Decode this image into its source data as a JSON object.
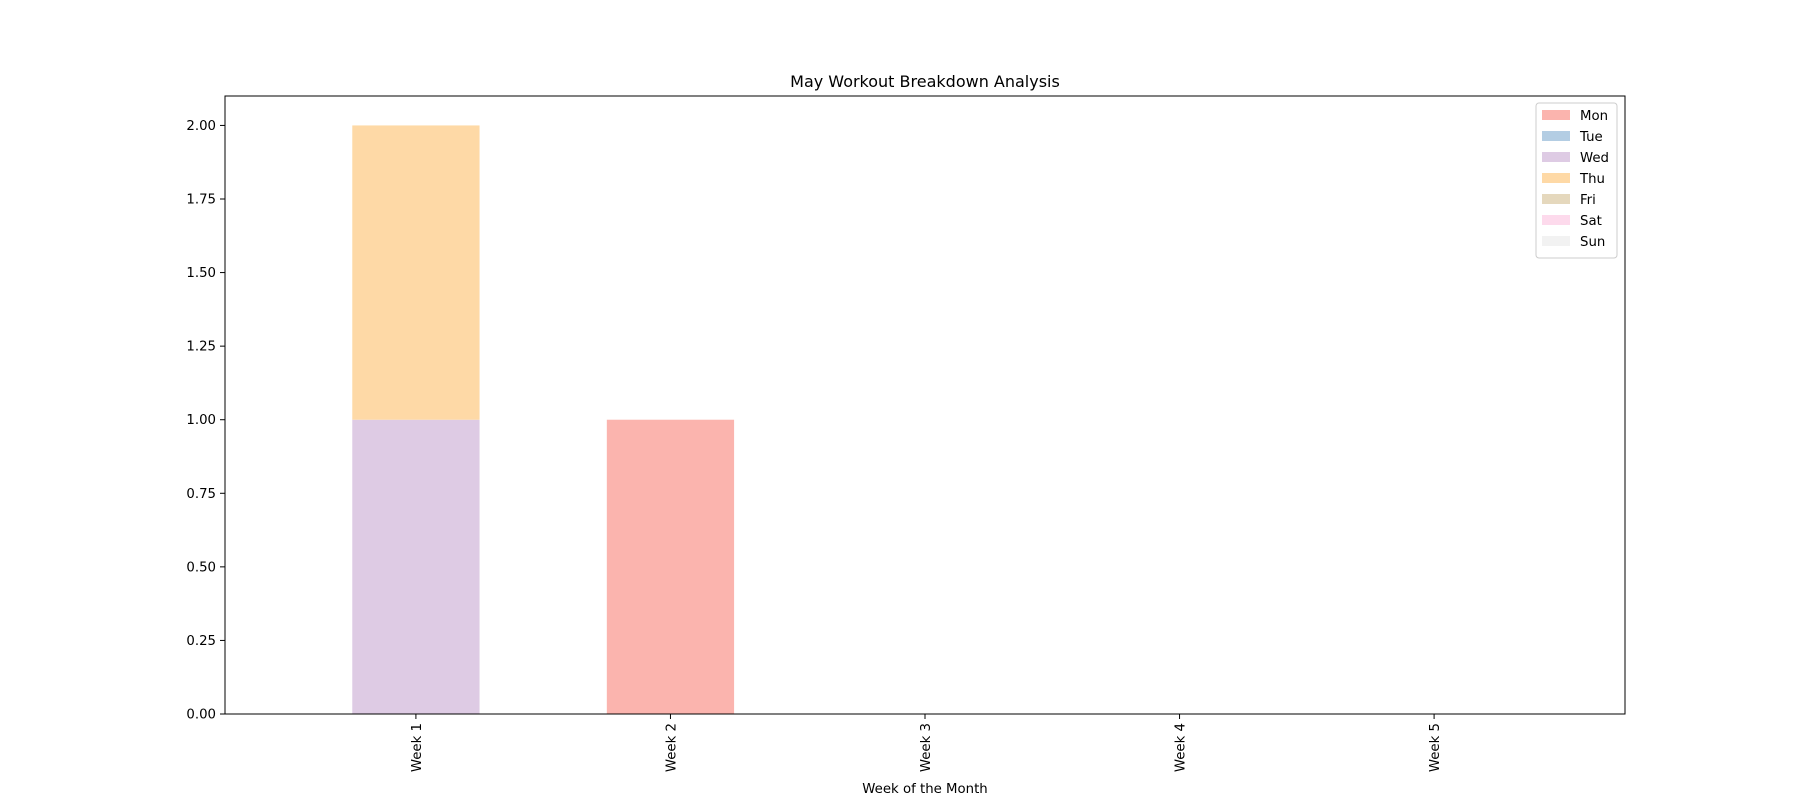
{
  "chart_data": {
    "type": "bar",
    "stacked": true,
    "title": "May Workout Breakdown Analysis",
    "xlabel": "Week of the Month",
    "ylabel": "",
    "categories": [
      "Week 1",
      "Week 2",
      "Week 3",
      "Week 4",
      "Week 5"
    ],
    "ylim": [
      0,
      2.1
    ],
    "yticks": [
      "0.00",
      "0.25",
      "0.50",
      "0.75",
      "1.00",
      "1.25",
      "1.50",
      "1.75",
      "2.00"
    ],
    "grid": false,
    "legend_position": "top-right",
    "series": [
      {
        "name": "Mon",
        "color": "#fbb4ae",
        "values": [
          0,
          1,
          0,
          0,
          0
        ]
      },
      {
        "name": "Tue",
        "color": "#b3cde3",
        "values": [
          0,
          0,
          0,
          0,
          0
        ]
      },
      {
        "name": "Wed",
        "color": "#decbe4",
        "values": [
          1,
          0,
          0,
          0,
          0
        ]
      },
      {
        "name": "Thu",
        "color": "#fed9a6",
        "values": [
          1,
          0,
          0,
          0,
          0
        ]
      },
      {
        "name": "Fri",
        "color": "#e5d8bd",
        "values": [
          0,
          0,
          0,
          0,
          0
        ]
      },
      {
        "name": "Sat",
        "color": "#fddaec",
        "values": [
          0,
          0,
          0,
          0,
          0
        ]
      },
      {
        "name": "Sun",
        "color": "#f2f2f2",
        "values": [
          0,
          0,
          0,
          0,
          0
        ]
      }
    ]
  }
}
